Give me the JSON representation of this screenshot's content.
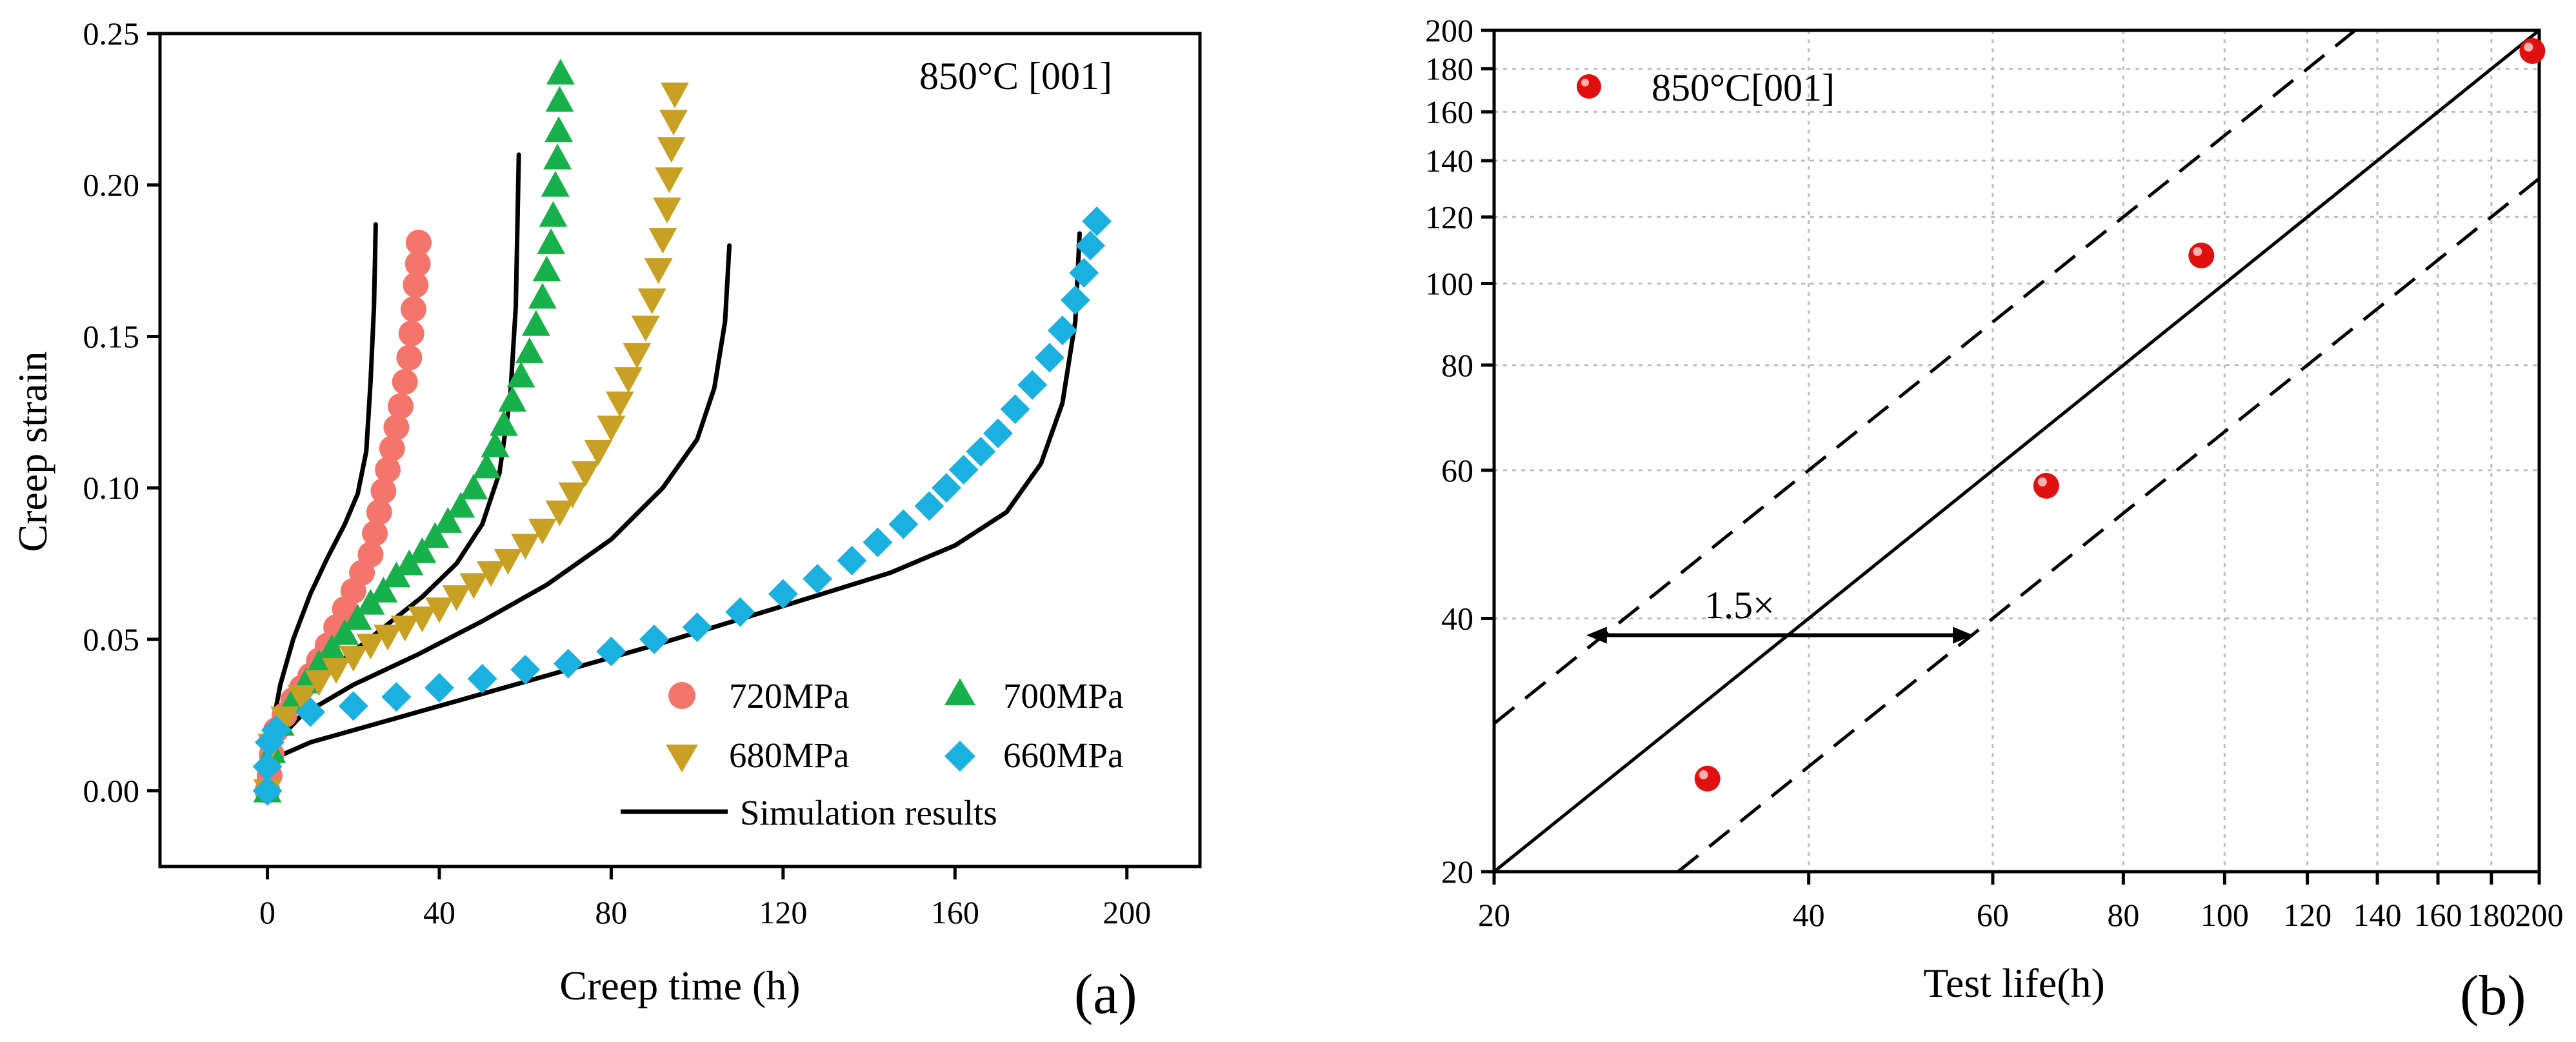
{
  "chart_data": [
    {
      "id": "a",
      "type": "scatter",
      "panel_label": "(a)",
      "annotation": "850°C [001]",
      "xlabel": "Creep time (h)",
      "ylabel": "Creep strain",
      "xlim": [
        -25,
        217
      ],
      "ylim": [
        -0.025,
        0.25
      ],
      "xticks": [
        0,
        40,
        80,
        120,
        160,
        200
      ],
      "yticks": [
        0.0,
        0.05,
        0.1,
        0.15,
        0.2,
        0.25
      ],
      "xtick_labels": [
        "0",
        "40",
        "80",
        "120",
        "160",
        "200"
      ],
      "ytick_labels": [
        "0.00",
        "0.05",
        "0.10",
        "0.15",
        "0.20",
        "0.25"
      ],
      "legend": {
        "placement": "bottom-right",
        "entries": [
          {
            "label": "720MPa",
            "marker": "circle"
          },
          {
            "label": "700MPa",
            "marker": "triangle-up"
          },
          {
            "label": "680MPa",
            "marker": "triangle-down"
          },
          {
            "label": "660MPa",
            "marker": "diamond"
          },
          {
            "label": "Simulation results",
            "marker": "line"
          }
        ]
      },
      "series": [
        {
          "name": "720MPa",
          "marker": "circle",
          "color": "#f4756b",
          "points": [
            [
              0,
              0.0
            ],
            [
              0.5,
              0.005
            ],
            [
              1,
              0.012
            ],
            [
              2,
              0.02
            ],
            [
              4,
              0.025
            ],
            [
              6,
              0.03
            ],
            [
              8,
              0.034
            ],
            [
              10,
              0.038
            ],
            [
              12,
              0.043
            ],
            [
              14,
              0.048
            ],
            [
              16,
              0.054
            ],
            [
              18,
              0.06
            ],
            [
              20,
              0.066
            ],
            [
              22,
              0.072
            ],
            [
              24,
              0.078
            ],
            [
              25,
              0.085
            ],
            [
              26,
              0.092
            ],
            [
              27,
              0.099
            ],
            [
              28,
              0.106
            ],
            [
              29,
              0.113
            ],
            [
              30,
              0.12
            ],
            [
              31,
              0.127
            ],
            [
              32,
              0.135
            ],
            [
              33,
              0.143
            ],
            [
              33.5,
              0.151
            ],
            [
              34,
              0.159
            ],
            [
              34.5,
              0.167
            ],
            [
              35,
              0.174
            ],
            [
              35.2,
              0.181
            ]
          ]
        },
        {
          "name": "700MPa",
          "marker": "triangle-up",
          "color": "#18b04a",
          "points": [
            [
              0,
              0.0
            ],
            [
              1,
              0.013
            ],
            [
              3,
              0.022
            ],
            [
              6,
              0.03
            ],
            [
              9,
              0.036
            ],
            [
              12,
              0.042
            ],
            [
              15,
              0.047
            ],
            [
              18,
              0.052
            ],
            [
              21,
              0.057
            ],
            [
              24,
              0.062
            ],
            [
              27,
              0.066
            ],
            [
              30,
              0.071
            ],
            [
              33,
              0.075
            ],
            [
              36,
              0.079
            ],
            [
              39,
              0.084
            ],
            [
              42,
              0.089
            ],
            [
              45,
              0.094
            ],
            [
              48,
              0.1
            ],
            [
              51,
              0.107
            ],
            [
              53,
              0.114
            ],
            [
              55,
              0.121
            ],
            [
              57,
              0.129
            ],
            [
              59,
              0.137
            ],
            [
              61,
              0.145
            ],
            [
              62.5,
              0.154
            ],
            [
              64,
              0.163
            ],
            [
              65,
              0.172
            ],
            [
              66,
              0.181
            ],
            [
              66.5,
              0.19
            ],
            [
              67,
              0.2
            ],
            [
              67.5,
              0.209
            ],
            [
              67.8,
              0.218
            ],
            [
              68,
              0.228
            ],
            [
              68.2,
              0.237
            ]
          ]
        },
        {
          "name": "680MPa",
          "marker": "triangle-down",
          "color": "#c8a024",
          "points": [
            [
              0,
              0.0
            ],
            [
              1,
              0.015
            ],
            [
              4,
              0.024
            ],
            [
              8,
              0.031
            ],
            [
              12,
              0.036
            ],
            [
              16,
              0.04
            ],
            [
              20,
              0.044
            ],
            [
              24,
              0.048
            ],
            [
              28,
              0.051
            ],
            [
              32,
              0.054
            ],
            [
              36,
              0.057
            ],
            [
              40,
              0.06
            ],
            [
              44,
              0.064
            ],
            [
              48,
              0.068
            ],
            [
              52,
              0.072
            ],
            [
              56,
              0.076
            ],
            [
              60,
              0.081
            ],
            [
              64,
              0.086
            ],
            [
              68,
              0.092
            ],
            [
              71,
              0.098
            ],
            [
              74,
              0.105
            ],
            [
              77,
              0.112
            ],
            [
              80,
              0.12
            ],
            [
              82,
              0.128
            ],
            [
              84,
              0.136
            ],
            [
              86,
              0.144
            ],
            [
              88,
              0.153
            ],
            [
              89.5,
              0.162
            ],
            [
              91,
              0.172
            ],
            [
              92,
              0.182
            ],
            [
              93,
              0.192
            ],
            [
              93.5,
              0.202
            ],
            [
              94,
              0.212
            ],
            [
              94.5,
              0.221
            ],
            [
              94.8,
              0.23
            ]
          ]
        },
        {
          "name": "660MPa",
          "marker": "diamond",
          "color": "#1ab0e0",
          "points": [
            [
              0,
              0.0
            ],
            [
              0,
              0.008
            ],
            [
              0.5,
              0.016
            ],
            [
              2,
              0.02
            ],
            [
              10,
              0.026
            ],
            [
              20,
              0.028
            ],
            [
              30,
              0.031
            ],
            [
              40,
              0.034
            ],
            [
              50,
              0.037
            ],
            [
              60,
              0.04
            ],
            [
              70,
              0.042
            ],
            [
              80,
              0.046
            ],
            [
              90,
              0.05
            ],
            [
              100,
              0.054
            ],
            [
              110,
              0.059
            ],
            [
              120,
              0.065
            ],
            [
              128,
              0.07
            ],
            [
              136,
              0.076
            ],
            [
              142,
              0.082
            ],
            [
              148,
              0.088
            ],
            [
              154,
              0.094
            ],
            [
              158,
              0.1
            ],
            [
              162,
              0.106
            ],
            [
              166,
              0.112
            ],
            [
              170,
              0.118
            ],
            [
              174,
              0.126
            ],
            [
              178,
              0.134
            ],
            [
              182,
              0.143
            ],
            [
              185,
              0.152
            ],
            [
              188,
              0.162
            ],
            [
              190,
              0.171
            ],
            [
              191.5,
              0.18
            ],
            [
              193,
              0.188
            ]
          ]
        }
      ],
      "simulation_curves": [
        {
          "name": "720MPa",
          "points": [
            [
              0,
              0.0
            ],
            [
              1,
              0.02
            ],
            [
              3,
              0.035
            ],
            [
              6,
              0.05
            ],
            [
              10,
              0.065
            ],
            [
              14,
              0.077
            ],
            [
              18,
              0.088
            ],
            [
              21,
              0.098
            ],
            [
              23,
              0.112
            ],
            [
              24,
              0.135
            ],
            [
              24.8,
              0.16
            ],
            [
              25.2,
              0.187
            ]
          ]
        },
        {
          "name": "700MPa",
          "points": [
            [
              0,
              0.0
            ],
            [
              2,
              0.018
            ],
            [
              6,
              0.028
            ],
            [
              12,
              0.037
            ],
            [
              20,
              0.046
            ],
            [
              28,
              0.055
            ],
            [
              36,
              0.064
            ],
            [
              44,
              0.075
            ],
            [
              50,
              0.088
            ],
            [
              54,
              0.105
            ],
            [
              56.5,
              0.13
            ],
            [
              57.8,
              0.16
            ],
            [
              58.5,
              0.21
            ]
          ]
        },
        {
          "name": "680MPa",
          "points": [
            [
              0,
              0.0
            ],
            [
              2,
              0.016
            ],
            [
              8,
              0.025
            ],
            [
              20,
              0.035
            ],
            [
              35,
              0.045
            ],
            [
              50,
              0.056
            ],
            [
              65,
              0.068
            ],
            [
              80,
              0.083
            ],
            [
              92,
              0.1
            ],
            [
              100,
              0.116
            ],
            [
              104,
              0.133
            ],
            [
              106.5,
              0.155
            ],
            [
              107.5,
              0.18
            ]
          ]
        },
        {
          "name": "660MPa",
          "points": [
            [
              0,
              0.0
            ],
            [
              2,
              0.011
            ],
            [
              10,
              0.016
            ],
            [
              30,
              0.024
            ],
            [
              60,
              0.036
            ],
            [
              90,
              0.048
            ],
            [
              120,
              0.061
            ],
            [
              145,
              0.072
            ],
            [
              160,
              0.081
            ],
            [
              172,
              0.092
            ],
            [
              180,
              0.108
            ],
            [
              185,
              0.128
            ],
            [
              188,
              0.155
            ],
            [
              189,
              0.184
            ]
          ]
        }
      ]
    },
    {
      "id": "b",
      "type": "scatter",
      "scale": "log-log",
      "panel_label": "(b)",
      "xlabel": "Test life(h)",
      "ylabel": "",
      "xlim": [
        20,
        200
      ],
      "ylim": [
        20,
        200
      ],
      "xticks": [
        20,
        40,
        60,
        80,
        100,
        120,
        140,
        160,
        180,
        200
      ],
      "xtick_labels": [
        "20",
        "40",
        "60",
        "80",
        "100",
        "120",
        "140",
        "160",
        "180",
        "200"
      ],
      "yticks": [
        20,
        40,
        60,
        80,
        100,
        120,
        140,
        160,
        180,
        200
      ],
      "ytick_labels": [
        "20",
        "40",
        "60",
        "80",
        "100",
        "120",
        "140",
        "160",
        "180",
        "200"
      ],
      "grid": true,
      "legend": {
        "placement": "top-left",
        "entries": [
          {
            "label": "850°C[001]",
            "marker": "sphere",
            "color": "#e01010"
          }
        ]
      },
      "points": [
        [
          32,
          25.8
        ],
        [
          67.5,
          57.5
        ],
        [
          95,
          108
        ],
        [
          197,
          189
        ]
      ],
      "reference_lines": [
        {
          "name": "y = x",
          "style": "solid",
          "factor": 1
        },
        {
          "name": "upper 1.5x band",
          "style": "dashed",
          "factor": 1.5
        },
        {
          "name": "lower 1.5x band",
          "style": "dashed",
          "factor": 0.6667
        }
      ],
      "band_annotation": {
        "text": "1.5×",
        "arrow_from": 24.5,
        "arrow_to": 57.5,
        "arrow_y": 38.2
      }
    }
  ]
}
